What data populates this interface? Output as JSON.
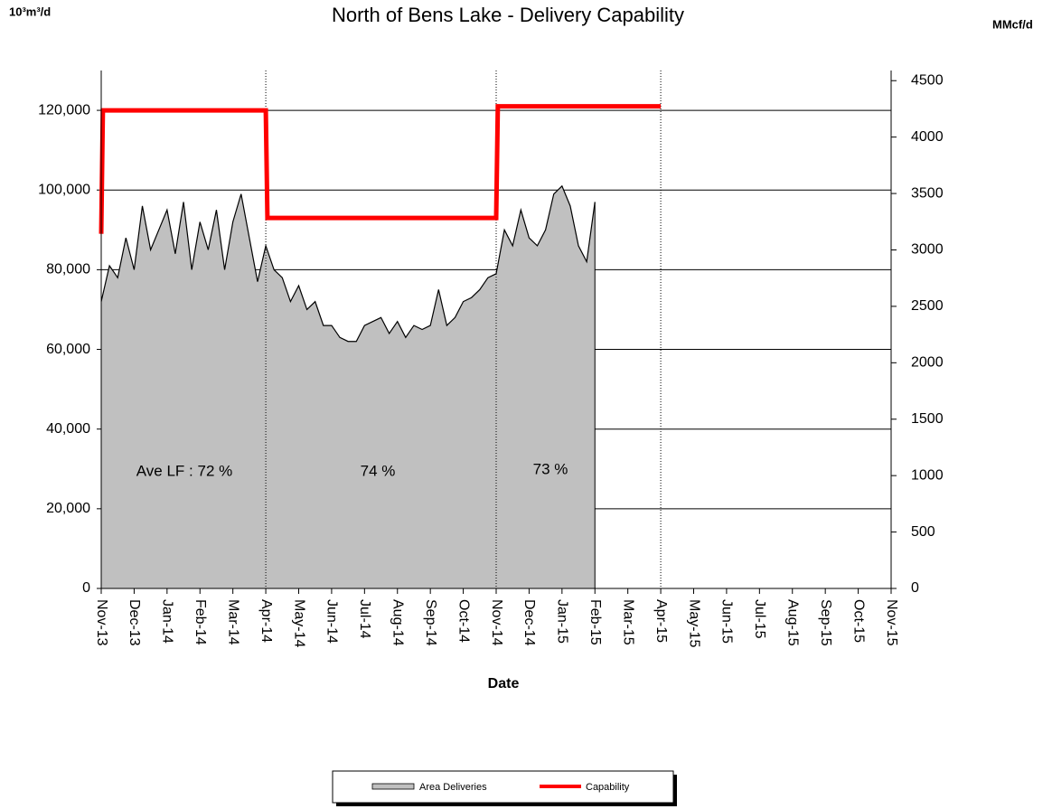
{
  "chart_data": {
    "type": "area",
    "title": "North of Bens Lake - Delivery Capability",
    "ylabel": "10³m³/d",
    "y2label": "MMcf/d",
    "xlabel": "Date",
    "xlim": [
      0,
      24
    ],
    "xticks": [
      {
        "value": 0,
        "label": "Nov-13"
      },
      {
        "value": 1,
        "label": "Dec-13"
      },
      {
        "value": 2,
        "label": "Jan-14"
      },
      {
        "value": 3,
        "label": "Feb-14"
      },
      {
        "value": 4,
        "label": "Mar-14"
      },
      {
        "value": 5,
        "label": "Apr-14"
      },
      {
        "value": 6,
        "label": "May-14"
      },
      {
        "value": 7,
        "label": "Jun-14"
      },
      {
        "value": 8,
        "label": "Jul-14"
      },
      {
        "value": 9,
        "label": "Aug-14"
      },
      {
        "value": 10,
        "label": "Sep-14"
      },
      {
        "value": 11,
        "label": "Oct-14"
      },
      {
        "value": 12,
        "label": "Nov-14"
      },
      {
        "value": 13,
        "label": "Dec-14"
      },
      {
        "value": 14,
        "label": "Jan-15"
      },
      {
        "value": 15,
        "label": "Feb-15"
      },
      {
        "value": 16,
        "label": "Mar-15"
      },
      {
        "value": 17,
        "label": "Apr-15"
      },
      {
        "value": 18,
        "label": "May-15"
      },
      {
        "value": 19,
        "label": "Jun-15"
      },
      {
        "value": 20,
        "label": "Jul-15"
      },
      {
        "value": 21,
        "label": "Aug-15"
      },
      {
        "value": 22,
        "label": "Sep-15"
      },
      {
        "value": 23,
        "label": "Oct-15"
      },
      {
        "value": 24,
        "label": "Nov-15"
      }
    ],
    "ylim": [
      0,
      130000
    ],
    "yticks": [
      0,
      {
        "value": 20000,
        "label": "20,000"
      },
      {
        "value": 40000,
        "label": "40,000"
      },
      {
        "value": 60000,
        "label": "60,000"
      },
      {
        "value": 80000,
        "label": "80,000"
      },
      {
        "value": 100000,
        "label": "100,000"
      },
      {
        "value": 120000,
        "label": "120,000"
      }
    ],
    "y2lim": [
      0,
      4590
    ],
    "y2ticks": [
      0,
      500,
      1000,
      1500,
      2000,
      2500,
      3000,
      3500,
      4000,
      4500
    ],
    "grid": true,
    "vlines": [
      5,
      12,
      17
    ],
    "annotations": [
      "Ave LF : 72 %",
      "74 %",
      "73 %"
    ],
    "legend": "bottom",
    "series": [
      {
        "name": "Area Deliveries",
        "color": "#c0c0c0",
        "x": [
          0,
          0.25,
          0.5,
          0.75,
          1,
          1.25,
          1.5,
          1.75,
          2,
          2.25,
          2.5,
          2.75,
          3,
          3.25,
          3.5,
          3.75,
          4,
          4.25,
          4.5,
          4.75,
          5,
          5.25,
          5.5,
          5.75,
          6,
          6.25,
          6.5,
          6.75,
          7,
          7.25,
          7.5,
          7.75,
          8,
          8.25,
          8.5,
          8.75,
          9,
          9.25,
          9.5,
          9.75,
          10,
          10.25,
          10.5,
          10.75,
          11,
          11.25,
          11.5,
          11.75,
          12,
          12.25,
          12.5,
          12.75,
          13,
          13.25,
          13.5,
          13.75,
          14,
          14.25,
          14.5,
          14.75,
          15
        ],
        "values": [
          72000,
          81000,
          78000,
          88000,
          80000,
          96000,
          85000,
          90000,
          95000,
          84000,
          97000,
          80000,
          92000,
          85000,
          95000,
          80000,
          92000,
          99000,
          88000,
          77000,
          86000,
          80000,
          78000,
          72000,
          76000,
          70000,
          72000,
          66000,
          66000,
          63000,
          62000,
          62000,
          66000,
          67000,
          68000,
          64000,
          67000,
          63000,
          66000,
          65000,
          66000,
          75000,
          66000,
          68000,
          72000,
          73000,
          75000,
          78000,
          79000,
          90000,
          86000,
          95000,
          88000,
          86000,
          90000,
          99000,
          101000,
          96000,
          86000,
          82000,
          97000
        ]
      },
      {
        "name": "Capability",
        "color": "#ff0000",
        "x": [
          0,
          0.05,
          5,
          5.05,
          12,
          12.05,
          17
        ],
        "values": [
          89000,
          120000,
          120000,
          93000,
          93000,
          121000,
          121000
        ]
      }
    ]
  }
}
